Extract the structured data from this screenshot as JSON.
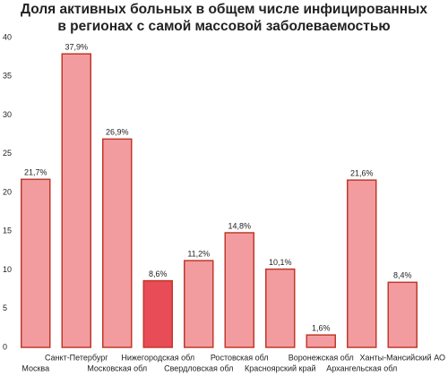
{
  "chart_data": {
    "type": "bar",
    "title": [
      "Доля активных больных в общем числе инфицированных",
      "в регионах с самой массовой заболеваемостью"
    ],
    "categories": [
      "Москва",
      "Санкт-Петербург",
      "Московская обл",
      "Нижегородская обл",
      "Свердловская обл",
      "Ростовская обл",
      "Красноярский край",
      "Воронежская обл",
      "Архангельская обл",
      "Ханты-Мансийский АО"
    ],
    "values": [
      21.7,
      37.9,
      26.9,
      8.6,
      11.2,
      14.8,
      10.1,
      1.6,
      21.6,
      8.4
    ],
    "value_labels": [
      "21,7%",
      "37,9%",
      "26,9%",
      "8,6%",
      "11,2%",
      "14,8%",
      "10,1%",
      "1,6%",
      "21,6%",
      "8,4%"
    ],
    "colors": [
      "#f39ca0",
      "#f39ca0",
      "#f39ca0",
      "#e84c57",
      "#f39ca0",
      "#f39ca0",
      "#f39ca0",
      "#f39ca0",
      "#f39ca0",
      "#f39ca0"
    ],
    "edgecolor": "#c0392b",
    "ylim": [
      0,
      40
    ],
    "yticks": [
      0,
      5,
      10,
      15,
      20,
      25,
      30,
      35,
      40
    ],
    "grid": false
  }
}
